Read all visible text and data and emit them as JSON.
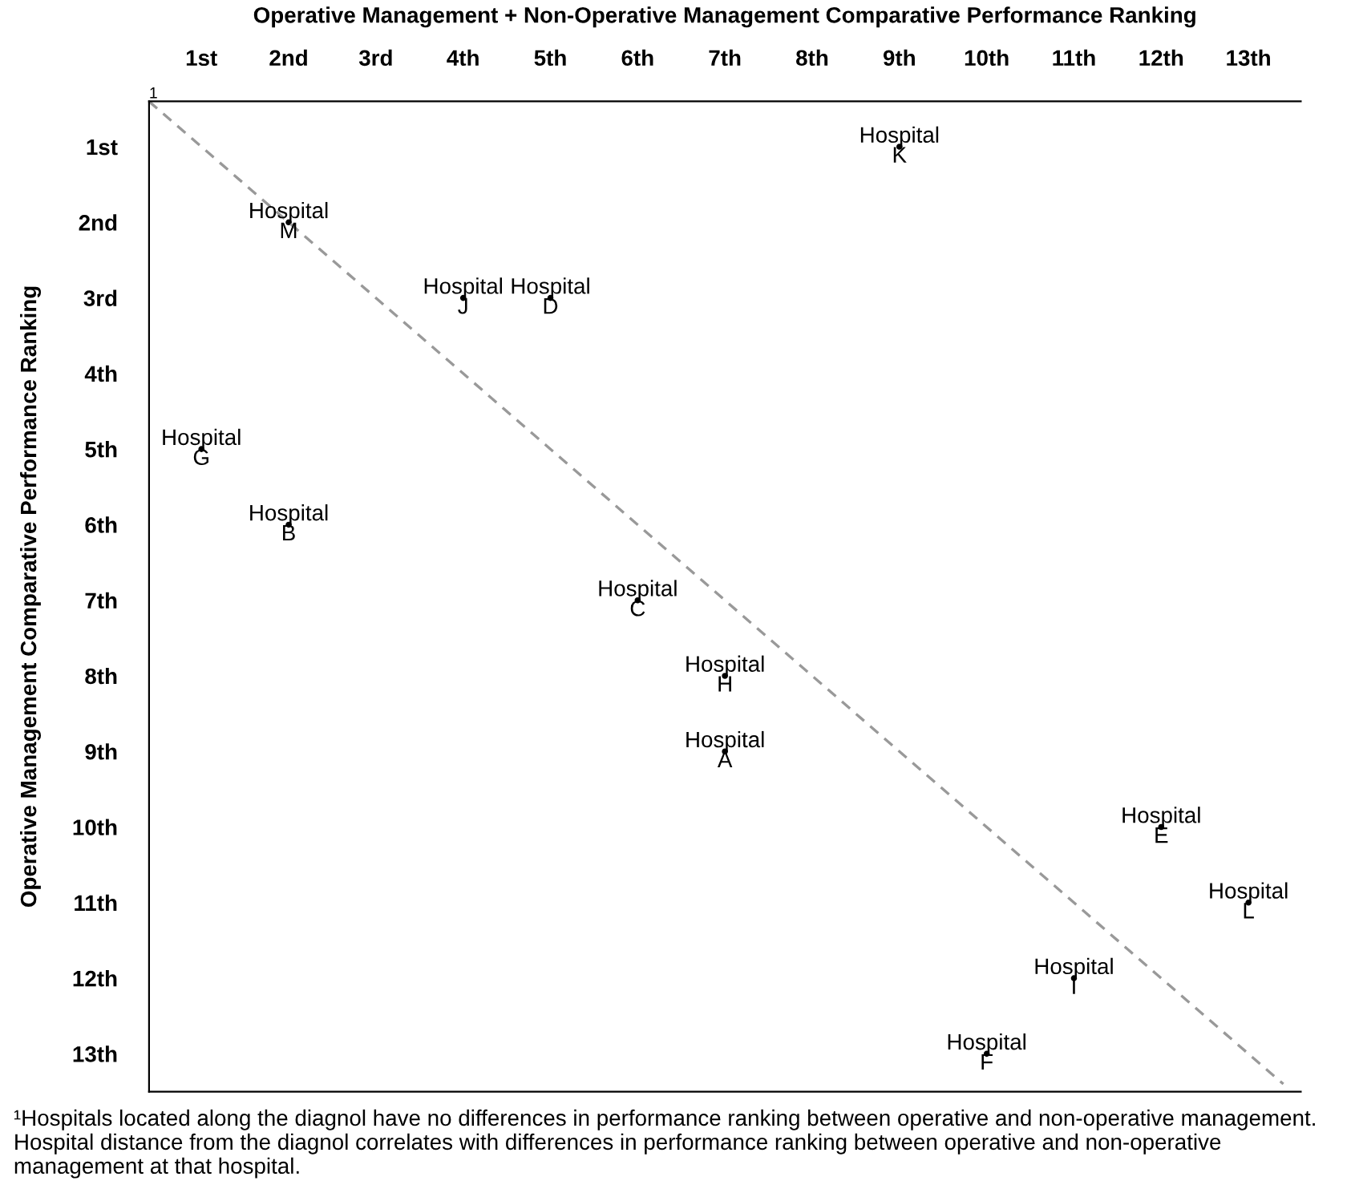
{
  "chart_data": {
    "type": "scatter",
    "xlabel": "Operative Management + Non-Operative Management Comparative Performance Ranking",
    "ylabel": "Operative Management Comparative Performance Ranking",
    "xlim": [
      0.4,
      13.6
    ],
    "ylim": [
      13.5,
      0.4
    ],
    "xticks": [
      {
        "value": 1,
        "label": "1st"
      },
      {
        "value": 2,
        "label": "2nd"
      },
      {
        "value": 3,
        "label": "3rd"
      },
      {
        "value": 4,
        "label": "4th"
      },
      {
        "value": 5,
        "label": "5th"
      },
      {
        "value": 6,
        "label": "6th"
      },
      {
        "value": 7,
        "label": "7th"
      },
      {
        "value": 8,
        "label": "8th"
      },
      {
        "value": 9,
        "label": "9th"
      },
      {
        "value": 10,
        "label": "10th"
      },
      {
        "value": 11,
        "label": "11th"
      },
      {
        "value": 12,
        "label": "12th"
      },
      {
        "value": 13,
        "label": "13th"
      }
    ],
    "yticks": [
      {
        "value": 1,
        "label": "1st"
      },
      {
        "value": 2,
        "label": "2nd"
      },
      {
        "value": 3,
        "label": "3rd"
      },
      {
        "value": 4,
        "label": "4th"
      },
      {
        "value": 5,
        "label": "5th"
      },
      {
        "value": 6,
        "label": "6th"
      },
      {
        "value": 7,
        "label": "7th"
      },
      {
        "value": 8,
        "label": "8th"
      },
      {
        "value": 9,
        "label": "9th"
      },
      {
        "value": 10,
        "label": "10th"
      },
      {
        "value": 11,
        "label": "11th"
      },
      {
        "value": 12,
        "label": "12th"
      },
      {
        "value": 13,
        "label": "13th"
      }
    ],
    "grid": false,
    "legend": false,
    "series": [
      {
        "type": "line",
        "color": "#999999",
        "line_style": "dashed",
        "x": [
          0.4,
          13.4
        ],
        "values": [
          0.4,
          13.4
        ]
      },
      {
        "color": "#000000",
        "marker": "circle",
        "x": [
          9,
          2,
          4,
          5,
          1,
          2,
          6,
          7,
          7,
          12,
          13,
          11,
          10
        ],
        "values": [
          1,
          2,
          3,
          3,
          5,
          6,
          7,
          8,
          9,
          10,
          11,
          12,
          13
        ],
        "value_labels": [
          "Hospital\nK",
          "Hospital\nM",
          "Hospital\nJ",
          "Hospital\nD",
          "Hospital\nG",
          "Hospital\nB",
          "Hospital\nC",
          "Hospital\nH",
          "Hospital\nA",
          "Hospital\nE",
          "Hospital\nL",
          "Hospital\nI",
          "Hospital\nF"
        ]
      }
    ],
    "annotations": [
      {
        "text": "1",
        "x": 0.4,
        "y": 0.4
      },
      "¹Hospitals located along the diagnol have no differences in performance ranking between operative and non-operative management. Hospital distance from the diagnol correlates with differences in performance ranking between operative and non-operative management at that hospital."
    ]
  }
}
